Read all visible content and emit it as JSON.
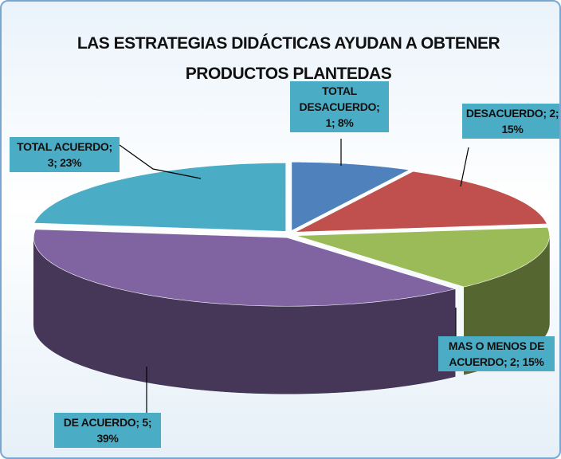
{
  "chart_data": {
    "type": "pie",
    "title": "LAS ESTRATEGIAS DIDÁCTICAS AYUDAN  A OBTENER PRODUCTOS PLANTEDAS",
    "values": [
      1,
      2,
      2,
      5,
      3
    ],
    "value_labels": [
      "TOTAL DESACUERDO; 1; 8%",
      "DESACUERDO; 2; 15%",
      "MAS O MENOS DE ACUERDO; 2; 15%",
      "DE ACUERDO; 5; 39%",
      "TOTAL ACUERDO; 3; 23%"
    ],
    "colors": [
      "#4f81bd",
      "#c0504d",
      "#9bbb59",
      "#8064a2",
      "#4bacc6"
    ]
  }
}
